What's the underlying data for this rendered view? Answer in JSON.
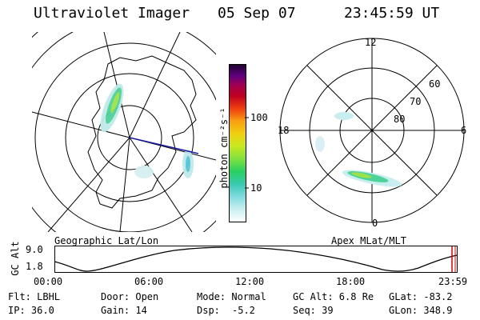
{
  "header": {
    "title": "Ultraviolet Imager",
    "date": "05 Sep 07",
    "time": "23:45:59 UT"
  },
  "left_panel": {
    "label": "Geographic Lat/Lon"
  },
  "right_panel": {
    "label": "Apex MLat/MLT",
    "mlt_labels": [
      "12",
      "18",
      "6",
      "0"
    ],
    "lat_labels": [
      "60",
      "70",
      "80"
    ]
  },
  "colorbar": {
    "unit_label": "photon cm⁻²s⁻¹",
    "ticks": [
      "100",
      "10"
    ]
  },
  "timeline": {
    "ylabel": "GC Alt",
    "ymax": "9.0",
    "ymin": "1.8",
    "ticks": [
      "00:00",
      "06:00",
      "12:00",
      "18:00",
      "23:59"
    ]
  },
  "info": {
    "col1": [
      "Flt: LBHL",
      "IP: 36.0"
    ],
    "col2": [
      "Door: Open",
      "Gain: 14"
    ],
    "col3a_label": [
      "Mode: Normal",
      "Dsp:"
    ],
    "dsp_value": "-5.2",
    "col4": [
      "GC Alt: 6.8 Re",
      "Seq: 39"
    ],
    "col5": [
      "GLat: -83.2",
      "GLon: 348.9"
    ]
  },
  "colors": {
    "marker": "#d40000",
    "track": "#1a1aa0"
  }
}
